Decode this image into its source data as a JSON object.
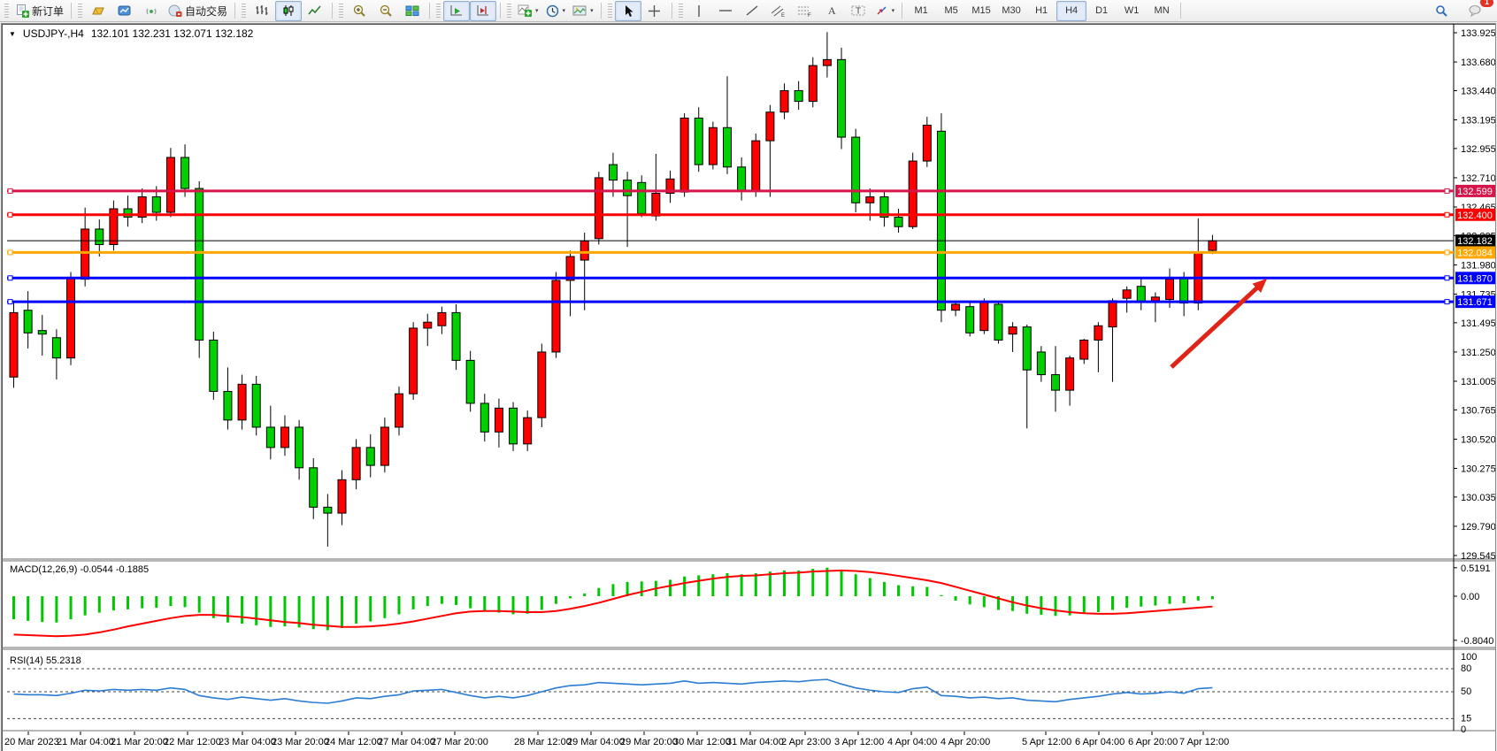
{
  "toolbar": {
    "new_order_label": "新订单",
    "autotrading_label": "自动交易",
    "icon_groups": [
      {
        "buttons": [
          {
            "name": "new-order",
            "labelKey": "new_order_label"
          }
        ]
      },
      {
        "buttons": [
          {
            "name": "market-watch"
          },
          {
            "name": "data-window"
          },
          {
            "name": "signals"
          },
          {
            "name": "autotrading",
            "labelKey": "autotrading_label"
          }
        ]
      },
      {
        "buttons": [
          {
            "name": "bar-chart"
          },
          {
            "name": "candlesticks",
            "active": true
          },
          {
            "name": "line-chart"
          }
        ]
      },
      {
        "buttons": [
          {
            "name": "zoom-in"
          },
          {
            "name": "zoom-out"
          },
          {
            "name": "tile-windows"
          }
        ]
      },
      {
        "buttons": [
          {
            "name": "auto-scroll",
            "active": true
          },
          {
            "name": "chart-shift",
            "active": true
          }
        ]
      },
      {
        "buttons": [
          {
            "name": "indicators",
            "dropdown": true
          },
          {
            "name": "periods",
            "dropdown": true
          },
          {
            "name": "templates",
            "dropdown": true
          }
        ]
      },
      {
        "buttons": [
          {
            "name": "cursor",
            "active": true
          },
          {
            "name": "crosshair"
          }
        ]
      },
      {
        "buttons": [
          {
            "name": "vertical-line"
          },
          {
            "name": "horizontal-line"
          },
          {
            "name": "trendline"
          },
          {
            "name": "equidistant-channel"
          },
          {
            "name": "fibonacci"
          },
          {
            "name": "text"
          },
          {
            "name": "text-label"
          },
          {
            "name": "arrows",
            "dropdown": true
          }
        ]
      }
    ],
    "timeframes": [
      "M1",
      "M5",
      "M15",
      "M30",
      "H1",
      "H4",
      "D1",
      "W1",
      "MN"
    ],
    "active_timeframe": "H4",
    "notification_badge": "1"
  },
  "chart": {
    "title": "USDJPY-,H4",
    "ohlc_display": "132.101 132.231 132.071 132.182",
    "macd_label": "MACD(12,26,9) -0.0544 -0.1885",
    "rsi_label": "RSI(14) 55.2318"
  },
  "chart_data": {
    "type": "candlestick",
    "symbol": "USDJPY-",
    "timeframe": "H4",
    "last_bar": {
      "open": 132.101,
      "high": 132.231,
      "low": 132.071,
      "close": 132.182
    },
    "bull_color": "#ff0000",
    "bear_color": "#00cf00",
    "price_ticks": [
      133.925,
      133.68,
      133.44,
      133.195,
      132.955,
      132.71,
      132.465,
      132.225,
      131.98,
      131.735,
      131.495,
      131.25,
      131.005,
      130.765,
      130.52,
      130.275,
      130.035,
      129.79,
      129.545
    ],
    "x_labels": [
      "20 Mar 2023",
      "21 Mar 04:00",
      "21 Mar 20:00",
      "22 Mar 12:00",
      "23 Mar 04:00",
      "23 Mar 20:00",
      "24 Mar 12:00",
      "27 Mar 04:00",
      "27 Mar 20:00",
      "28 Mar 12:00",
      "29 Mar 04:00",
      "29 Mar 20:00",
      "30 Mar 12:00",
      "31 Mar 04:00",
      "2 Apr 23:00",
      "3 Apr 12:00",
      "4 Apr 04:00",
      "4 Apr 20:00",
      "5 Apr 12:00",
      "6 Apr 04:00",
      "6 Apr 20:00",
      "7 Apr 12:00"
    ],
    "hlines": [
      {
        "price": 132.599,
        "label": "132.599",
        "color": "#d6164a",
        "width": 3
      },
      {
        "price": 132.4,
        "label": "132.400",
        "color": "#fb0000",
        "width": 3
      },
      {
        "price": 132.182,
        "label": "132.182",
        "color": "#000000",
        "width": 1,
        "type": "current-price"
      },
      {
        "price": 132.084,
        "label": "132.084",
        "color": "#ffa600",
        "width": 3
      },
      {
        "price": 131.87,
        "label": "131.870",
        "color": "#0000ff",
        "width": 3
      },
      {
        "price": 131.671,
        "label": "131.671",
        "color": "#0000ff",
        "width": 3
      }
    ],
    "candles": [
      [
        131.04,
        131.66,
        130.95,
        131.58
      ],
      [
        131.6,
        131.76,
        131.28,
        131.41
      ],
      [
        131.43,
        131.56,
        131.22,
        131.4
      ],
      [
        131.37,
        131.44,
        131.02,
        131.2
      ],
      [
        131.2,
        131.92,
        131.14,
        131.87
      ],
      [
        131.86,
        132.46,
        131.8,
        132.28
      ],
      [
        132.28,
        132.36,
        132.05,
        132.15
      ],
      [
        132.15,
        132.52,
        132.1,
        132.45
      ],
      [
        132.45,
        132.56,
        132.3,
        132.38
      ],
      [
        132.38,
        132.62,
        132.33,
        132.55
      ],
      [
        132.55,
        132.64,
        132.35,
        132.42
      ],
      [
        132.42,
        132.96,
        132.38,
        132.88
      ],
      [
        132.88,
        132.99,
        132.55,
        132.62
      ],
      [
        132.62,
        132.68,
        131.2,
        131.35
      ],
      [
        131.35,
        131.42,
        130.85,
        130.92
      ],
      [
        130.92,
        131.12,
        130.6,
        130.68
      ],
      [
        130.68,
        131.06,
        130.6,
        130.98
      ],
      [
        130.98,
        131.05,
        130.55,
        130.62
      ],
      [
        130.62,
        130.8,
        130.35,
        130.45
      ],
      [
        130.45,
        130.72,
        130.38,
        130.62
      ],
      [
        130.62,
        130.68,
        130.18,
        130.28
      ],
      [
        130.28,
        130.36,
        129.85,
        129.95
      ],
      [
        129.95,
        130.06,
        129.62,
        129.9
      ],
      [
        129.9,
        130.26,
        129.8,
        130.18
      ],
      [
        130.18,
        130.52,
        130.1,
        130.45
      ],
      [
        130.45,
        130.56,
        130.2,
        130.3
      ],
      [
        130.3,
        130.7,
        130.24,
        130.62
      ],
      [
        130.62,
        130.96,
        130.55,
        130.9
      ],
      [
        130.9,
        131.5,
        130.85,
        131.45
      ],
      [
        131.45,
        131.57,
        131.3,
        131.5
      ],
      [
        131.47,
        131.63,
        131.4,
        131.58
      ],
      [
        131.58,
        131.65,
        131.1,
        131.18
      ],
      [
        131.18,
        131.26,
        130.75,
        130.82
      ],
      [
        130.82,
        130.9,
        130.5,
        130.58
      ],
      [
        130.58,
        130.86,
        130.45,
        130.78
      ],
      [
        130.78,
        130.83,
        130.42,
        130.48
      ],
      [
        130.48,
        130.76,
        130.42,
        130.7
      ],
      [
        130.7,
        131.32,
        130.62,
        131.25
      ],
      [
        131.25,
        131.92,
        131.2,
        131.85
      ],
      [
        131.85,
        132.1,
        131.55,
        132.05
      ],
      [
        132.02,
        132.25,
        131.6,
        132.18
      ],
      [
        132.2,
        132.76,
        132.15,
        132.71
      ],
      [
        132.82,
        132.92,
        132.55,
        132.69
      ],
      [
        132.69,
        132.76,
        132.13,
        132.56
      ],
      [
        132.67,
        132.73,
        132.38,
        132.41
      ],
      [
        132.39,
        132.91,
        132.35,
        132.58
      ],
      [
        132.58,
        132.77,
        132.5,
        132.7
      ],
      [
        132.59,
        133.25,
        132.55,
        133.21
      ],
      [
        133.21,
        133.3,
        132.76,
        132.82
      ],
      [
        132.82,
        133.18,
        132.78,
        133.13
      ],
      [
        133.13,
        133.56,
        132.74,
        132.8
      ],
      [
        132.8,
        132.88,
        132.52,
        132.6
      ],
      [
        132.6,
        133.08,
        132.55,
        133.02
      ],
      [
        133.02,
        133.32,
        132.55,
        133.26
      ],
      [
        133.26,
        133.5,
        133.2,
        133.44
      ],
      [
        133.44,
        133.52,
        133.28,
        133.35
      ],
      [
        133.35,
        133.72,
        133.3,
        133.65
      ],
      [
        133.65,
        133.93,
        133.55,
        133.7
      ],
      [
        133.7,
        133.8,
        132.95,
        133.05
      ],
      [
        133.05,
        133.12,
        132.42,
        132.5
      ],
      [
        132.5,
        132.62,
        132.35,
        132.55
      ],
      [
        132.55,
        132.6,
        132.3,
        132.38
      ],
      [
        132.38,
        132.45,
        132.25,
        132.3
      ],
      [
        132.3,
        132.92,
        132.28,
        132.85
      ],
      [
        132.85,
        133.22,
        132.8,
        133.15
      ],
      [
        133.1,
        133.25,
        131.5,
        131.6
      ],
      [
        131.6,
        131.68,
        131.55,
        131.65
      ],
      [
        131.63,
        131.68,
        131.38,
        131.41
      ],
      [
        131.43,
        131.7,
        131.4,
        131.67
      ],
      [
        131.65,
        131.68,
        131.32,
        131.35
      ],
      [
        131.4,
        131.5,
        131.25,
        131.46
      ],
      [
        131.46,
        131.48,
        130.61,
        131.1
      ],
      [
        131.25,
        131.3,
        131.0,
        131.06
      ],
      [
        131.06,
        131.3,
        130.75,
        130.93
      ],
      [
        130.93,
        131.22,
        130.8,
        131.2
      ],
      [
        131.19,
        131.36,
        131.15,
        131.35
      ],
      [
        131.35,
        131.5,
        131.08,
        131.47
      ],
      [
        131.46,
        131.7,
        131.0,
        131.68
      ],
      [
        131.7,
        131.8,
        131.58,
        131.77
      ],
      [
        131.8,
        131.87,
        131.6,
        131.67
      ],
      [
        131.68,
        131.75,
        131.5,
        131.71
      ],
      [
        131.69,
        131.95,
        131.62,
        131.86
      ],
      [
        131.87,
        131.92,
        131.55,
        131.66
      ],
      [
        131.66,
        132.37,
        131.6,
        132.08
      ],
      [
        132.101,
        132.231,
        132.071,
        132.182
      ]
    ],
    "macd": {
      "label": "MACD(12,26,9) -0.0544 -0.1885",
      "main_value": -0.0544,
      "signal_value": -0.1885,
      "scale_ticks": [
        0.5191,
        0.0,
        -0.804
      ],
      "hist_color": "#00c800",
      "signal_color": "#ff0000",
      "histogram": [
        -0.42,
        -0.45,
        -0.47,
        -0.48,
        -0.42,
        -0.35,
        -0.3,
        -0.26,
        -0.24,
        -0.22,
        -0.21,
        -0.18,
        -0.2,
        -0.3,
        -0.4,
        -0.48,
        -0.5,
        -0.53,
        -0.56,
        -0.55,
        -0.57,
        -0.6,
        -0.62,
        -0.58,
        -0.5,
        -0.46,
        -0.4,
        -0.33,
        -0.24,
        -0.18,
        -0.14,
        -0.16,
        -0.22,
        -0.28,
        -0.3,
        -0.33,
        -0.32,
        -0.25,
        -0.14,
        -0.04,
        0.05,
        0.15,
        0.22,
        0.26,
        0.27,
        0.28,
        0.3,
        0.36,
        0.38,
        0.4,
        0.42,
        0.4,
        0.42,
        0.45,
        0.47,
        0.47,
        0.5,
        0.52,
        0.48,
        0.4,
        0.33,
        0.26,
        0.2,
        0.18,
        0.17,
        0.02,
        -0.08,
        -0.15,
        -0.2,
        -0.25,
        -0.27,
        -0.32,
        -0.34,
        -0.36,
        -0.35,
        -0.32,
        -0.29,
        -0.25,
        -0.21,
        -0.19,
        -0.17,
        -0.14,
        -0.13,
        -0.08,
        -0.0544
      ],
      "signal": [
        -0.7,
        -0.71,
        -0.72,
        -0.73,
        -0.72,
        -0.7,
        -0.66,
        -0.61,
        -0.55,
        -0.5,
        -0.45,
        -0.4,
        -0.36,
        -0.34,
        -0.34,
        -0.36,
        -0.38,
        -0.41,
        -0.44,
        -0.47,
        -0.49,
        -0.52,
        -0.54,
        -0.56,
        -0.56,
        -0.55,
        -0.53,
        -0.5,
        -0.46,
        -0.41,
        -0.36,
        -0.31,
        -0.28,
        -0.27,
        -0.27,
        -0.28,
        -0.29,
        -0.29,
        -0.27,
        -0.23,
        -0.18,
        -0.12,
        -0.05,
        0.02,
        0.08,
        0.14,
        0.19,
        0.24,
        0.28,
        0.32,
        0.35,
        0.37,
        0.38,
        0.4,
        0.42,
        0.43,
        0.45,
        0.46,
        0.47,
        0.46,
        0.44,
        0.41,
        0.37,
        0.33,
        0.29,
        0.24,
        0.17,
        0.1,
        0.03,
        -0.04,
        -0.11,
        -0.17,
        -0.22,
        -0.26,
        -0.29,
        -0.31,
        -0.32,
        -0.32,
        -0.31,
        -0.29,
        -0.27,
        -0.25,
        -0.23,
        -0.21,
        -0.1885
      ]
    },
    "rsi": {
      "label": "RSI(14) 55.2318",
      "value": 55.2318,
      "levels": [
        100,
        80,
        50,
        15,
        0
      ],
      "dashed_levels": [
        80,
        50,
        15
      ],
      "color": "#2b7cd3",
      "values": [
        47,
        46,
        46,
        45,
        48,
        52,
        51,
        53,
        52,
        53,
        52,
        55,
        53,
        45,
        42,
        40,
        43,
        41,
        39,
        41,
        38,
        36,
        35,
        38,
        42,
        41,
        44,
        46,
        51,
        52,
        53,
        49,
        45,
        42,
        44,
        42,
        45,
        50,
        55,
        58,
        59,
        62,
        61,
        60,
        59,
        60,
        61,
        64,
        61,
        62,
        61,
        60,
        62,
        63,
        64,
        63,
        65,
        66,
        60,
        55,
        52,
        50,
        49,
        54,
        56,
        45,
        44,
        42,
        43,
        41,
        42,
        39,
        38,
        37,
        40,
        42,
        44,
        47,
        49,
        47,
        48,
        50,
        48,
        54,
        55.23
      ]
    },
    "arrow": {
      "from": [
        1322,
        388
      ],
      "to": [
        1430,
        288
      ],
      "color": "#e02418"
    }
  }
}
